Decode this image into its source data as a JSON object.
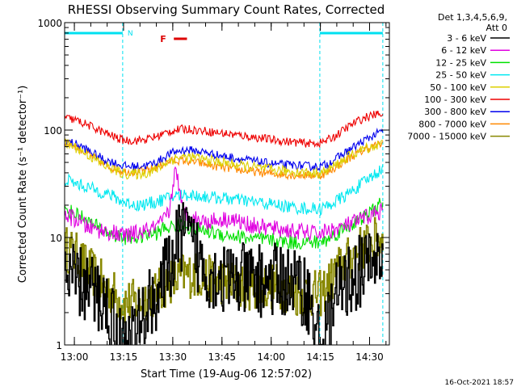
{
  "chart_data": {
    "type": "line",
    "title": "RHESSI Observing Summary Count Rates, Corrected",
    "xlabel": "Start Time (19-Aug-06 12:57:02)",
    "ylabel": "Corrected Count Rate (s⁻¹ detector⁻¹)",
    "yscale": "log",
    "xlim_minutes": [
      0,
      99
    ],
    "ylim": [
      1,
      1000
    ],
    "x_ticks": [
      {
        "minute": 2.97,
        "label": "13:00"
      },
      {
        "minute": 17.97,
        "label": "13:15"
      },
      {
        "minute": 32.97,
        "label": "13:30"
      },
      {
        "minute": 47.97,
        "label": "13:45"
      },
      {
        "minute": 62.97,
        "label": "14:00"
      },
      {
        "minute": 77.97,
        "label": "14:15"
      },
      {
        "minute": 92.97,
        "label": "14:30"
      }
    ],
    "y_ticks": [
      {
        "value": 1,
        "label": "1"
      },
      {
        "value": 10,
        "label": "10"
      },
      {
        "value": 100,
        "label": "100"
      },
      {
        "value": 1000,
        "label": "1000"
      }
    ],
    "legend_header": [
      "Det 1,3,4,5,6,9,",
      "Att 0"
    ],
    "legend_position": "right, outside plot",
    "timestamp": "16-Oct-2021 18:57",
    "annotations": {
      "flare_flag": {
        "label": "F",
        "start_minute": 33.3,
        "end_minute": 37.3,
        "color": "#dd0000"
      },
      "night_flag": {
        "label": "N",
        "color": "#00e0f0"
      },
      "night_intervals": [
        [
          0,
          17.7
        ],
        [
          77.8,
          97
        ]
      ]
    },
    "series": [
      {
        "name": "3 - 6 keV",
        "color": "#000000",
        "x": [
          0,
          3,
          6,
          9,
          12,
          15,
          17,
          19,
          22,
          25,
          28,
          30,
          32,
          34,
          36,
          38,
          40,
          43,
          46,
          50,
          55,
          60,
          65,
          70,
          74,
          76,
          78,
          80,
          82,
          85,
          88,
          91,
          94,
          97
        ],
        "y": [
          4,
          4,
          3.5,
          3,
          2.5,
          1.6,
          1,
          1,
          1.4,
          2.2,
          3,
          4,
          5.5,
          8,
          12,
          9,
          7,
          5,
          4.5,
          4,
          4,
          4,
          4,
          3.8,
          3,
          1.5,
          1,
          1.4,
          2.5,
          3.5,
          4.5,
          5,
          6,
          6.5
        ]
      },
      {
        "name": "6 - 12 keV",
        "color": "#e000e0",
        "x": [
          0,
          3,
          6,
          9,
          12,
          15,
          17,
          19,
          22,
          25,
          28,
          30,
          32,
          33,
          34,
          35,
          36,
          38,
          40,
          43,
          46,
          50,
          55,
          60,
          65,
          70,
          75,
          78,
          80,
          83,
          86,
          89,
          92,
          95,
          97
        ],
        "y": [
          16,
          15,
          13,
          12,
          11.5,
          11,
          10.5,
          10.5,
          11,
          11.5,
          12.5,
          14,
          18,
          30,
          48,
          25,
          18,
          16,
          15,
          14,
          14.5,
          15,
          13.5,
          12.5,
          12,
          11.5,
          11,
          11,
          11.5,
          12,
          13,
          14,
          15.5,
          17,
          18
        ]
      },
      {
        "name": "12 - 25 keV",
        "color": "#00e000",
        "x": [
          0,
          3,
          6,
          9,
          12,
          15,
          17,
          19,
          22,
          25,
          28,
          30,
          32,
          34,
          36,
          38,
          40,
          43,
          46,
          50,
          55,
          60,
          65,
          70,
          75,
          78,
          80,
          83,
          86,
          89,
          92,
          95,
          97
        ],
        "y": [
          18,
          17,
          15,
          13,
          11.5,
          10.5,
          10,
          10,
          10,
          10.5,
          11,
          12,
          12.5,
          13,
          13,
          12.5,
          12,
          11.5,
          11,
          10.5,
          10,
          9.5,
          9.3,
          9,
          9,
          9,
          9.5,
          11,
          12.5,
          14,
          16,
          19,
          21
        ]
      },
      {
        "name": "25 - 50 keV",
        "color": "#00e8f0",
        "x": [
          0,
          3,
          6,
          9,
          12,
          15,
          17,
          19,
          22,
          25,
          28,
          30,
          32,
          34,
          36,
          38,
          40,
          43,
          46,
          50,
          55,
          60,
          65,
          70,
          75,
          78,
          80,
          83,
          86,
          89,
          92,
          95,
          97
        ],
        "y": [
          35,
          32,
          30,
          28,
          26,
          24,
          22,
          21,
          20,
          20.5,
          21.5,
          22.5,
          23.5,
          24.5,
          25,
          25,
          24.5,
          24,
          23.5,
          23,
          22,
          21,
          20,
          19,
          18.5,
          18.5,
          19.5,
          22,
          25,
          29,
          34,
          40,
          44
        ]
      },
      {
        "name": "50 - 100 keV",
        "color": "#ddd000",
        "x": [
          0,
          3,
          6,
          9,
          12,
          15,
          17,
          19,
          22,
          25,
          28,
          30,
          32,
          34,
          36,
          38,
          40,
          43,
          46,
          50,
          55,
          60,
          65,
          70,
          75,
          78,
          80,
          83,
          86,
          89,
          92,
          95,
          97
        ],
        "y": [
          75,
          70,
          62,
          54,
          47,
          43,
          40,
          39,
          39,
          40,
          43,
          48,
          52,
          55,
          56,
          56,
          55,
          53,
          51,
          49,
          46,
          44,
          42,
          41,
          40,
          40,
          42,
          48,
          55,
          62,
          68,
          72,
          75
        ]
      },
      {
        "name": "100 - 300 keV",
        "color": "#ee0000",
        "x": [
          0,
          3,
          6,
          9,
          12,
          15,
          17,
          19,
          22,
          25,
          28,
          30,
          32,
          34,
          36,
          38,
          40,
          43,
          46,
          50,
          55,
          60,
          65,
          70,
          75,
          78,
          80,
          83,
          86,
          89,
          92,
          95,
          97
        ],
        "y": [
          130,
          125,
          115,
          105,
          95,
          87,
          82,
          80,
          80,
          82,
          87,
          92,
          97,
          100,
          102,
          102,
          100,
          98,
          95,
          92,
          88,
          84,
          80,
          77,
          75,
          76,
          80,
          90,
          105,
          120,
          132,
          140,
          145
        ]
      },
      {
        "name": "300 - 800 keV",
        "color": "#0000ee",
        "x": [
          0,
          3,
          6,
          9,
          12,
          15,
          17,
          19,
          22,
          25,
          28,
          30,
          32,
          34,
          36,
          38,
          40,
          43,
          46,
          50,
          55,
          60,
          65,
          70,
          75,
          78,
          80,
          83,
          86,
          89,
          92,
          95,
          97
        ],
        "y": [
          80,
          75,
          68,
          60,
          53,
          50,
          47,
          46,
          46,
          47,
          50,
          55,
          60,
          63,
          65,
          65,
          64,
          62,
          59,
          56,
          53,
          50,
          48,
          47,
          46,
          46,
          48,
          55,
          63,
          72,
          82,
          92,
          98
        ]
      },
      {
        "name": "800 - 7000 keV",
        "color": "#ff8800",
        "x": [
          0,
          3,
          6,
          9,
          12,
          15,
          17,
          19,
          22,
          25,
          28,
          30,
          32,
          34,
          36,
          38,
          40,
          43,
          46,
          50,
          55,
          60,
          65,
          70,
          75,
          78,
          80,
          83,
          86,
          89,
          92,
          95,
          97
        ],
        "y": [
          78,
          72,
          63,
          55,
          48,
          44,
          42,
          41,
          41,
          42,
          45,
          48,
          51,
          52,
          52,
          51,
          50,
          48,
          46,
          44,
          42,
          40,
          39,
          38,
          38,
          38,
          40,
          46,
          53,
          60,
          67,
          72,
          75
        ]
      },
      {
        "name": "7000 - 15000 keV",
        "color": "#888800",
        "x": [
          0,
          3,
          6,
          9,
          12,
          15,
          17,
          19,
          22,
          25,
          28,
          30,
          32,
          34,
          36,
          38,
          40,
          43,
          46,
          50,
          55,
          60,
          65,
          70,
          75,
          78,
          80,
          83,
          86,
          89,
          92,
          95,
          97
        ],
        "y": [
          8,
          7,
          5.5,
          4.5,
          3.5,
          3,
          2.5,
          2.5,
          2.5,
          2.8,
          3,
          3.5,
          4,
          4,
          4.5,
          4.5,
          4.5,
          4.2,
          4,
          3.8,
          3.5,
          3.5,
          3.5,
          3,
          3,
          3,
          3.5,
          5,
          6,
          7.5,
          8.5,
          9.5,
          10
        ]
      }
    ]
  }
}
